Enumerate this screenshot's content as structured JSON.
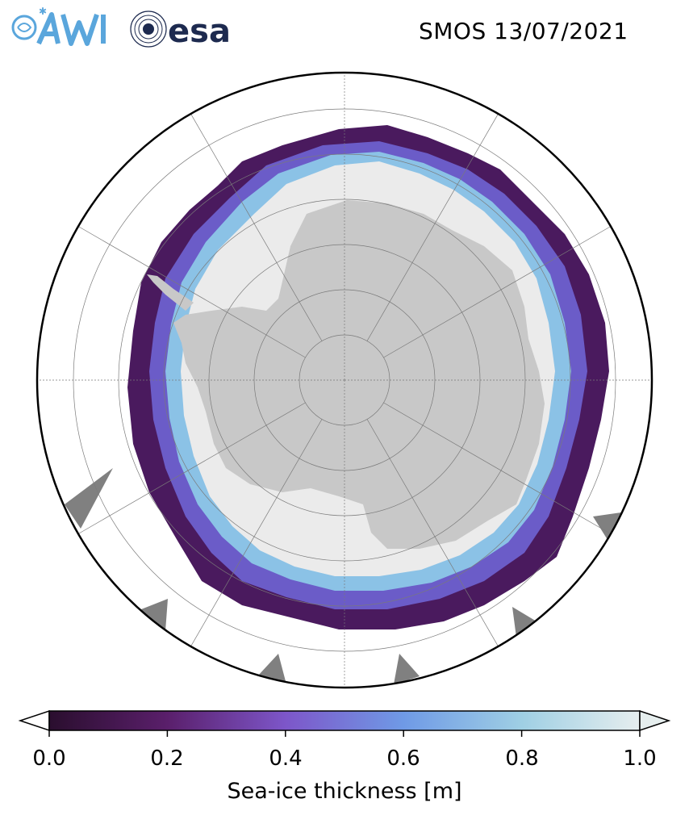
{
  "header": {
    "title": "SMOS 13/07/2021",
    "logos": [
      {
        "name": "awi-logo",
        "text": "AWI"
      },
      {
        "name": "esa-logo",
        "text": "esa"
      }
    ]
  },
  "map": {
    "projection": "south-polar-stereographic",
    "parallels_deg": [
      -80,
      -70,
      -60,
      -50,
      -40
    ],
    "meridian_step_deg": 30,
    "colors": {
      "land": "#c8c8c8",
      "ocean": "#ffffff",
      "thick_ice": "#ebebeb",
      "ice_edge": "#4a1a5e",
      "mid_ice": "#7a6ad8",
      "grid": "#7a7a7a",
      "no_data": "#808080"
    }
  },
  "colorbar": {
    "label": "Sea-ice thickness [m]",
    "min": 0.0,
    "max": 1.0,
    "extend": "both",
    "ticks": [
      "0.0",
      "0.2",
      "0.4",
      "0.6",
      "0.8",
      "1.0"
    ],
    "colormap_stops": [
      "#2a0e2e",
      "#5a1f6b",
      "#7d56c9",
      "#6f9ae6",
      "#9fcfe4",
      "#e6eeee"
    ]
  }
}
